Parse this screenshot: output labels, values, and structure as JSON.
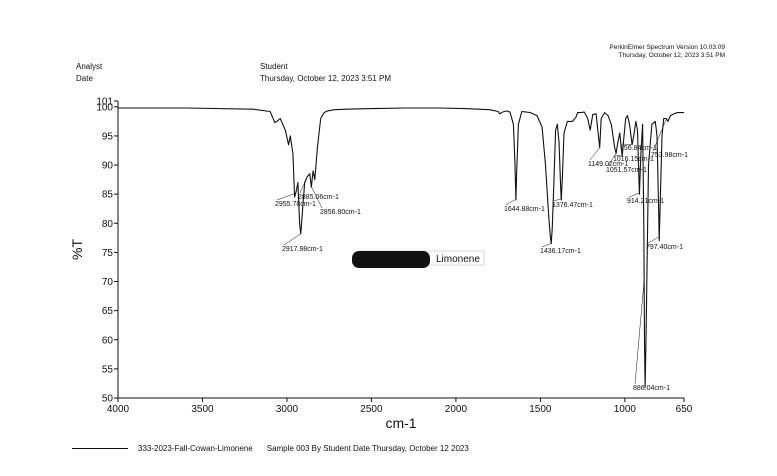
{
  "header": {
    "analyst_label": "Analyst",
    "date_label": "Date",
    "analyst_value": "Student",
    "date_value": "Thursday, October 12, 2023 3:51 PM",
    "software": "PerkinElmer Spectrum Version 10.03.09",
    "software_date": "Thursday, October 12, 2023 3:51 PM"
  },
  "legend": {
    "sample_name": "333-2023-Fall-Cowan-Limonene",
    "description": "Sample 003 By Student Date Thursday, October 12 2023"
  },
  "chart_data": {
    "type": "line",
    "title": "",
    "xlabel": "cm-1",
    "ylabel": "%T",
    "xlim": [
      4000,
      650
    ],
    "ylim": [
      50,
      101
    ],
    "x_reversed": true,
    "x_ticks": [
      4000,
      3500,
      3000,
      2500,
      2000,
      1500,
      1000,
      650
    ],
    "y_ticks": [
      50,
      55,
      60,
      65,
      70,
      75,
      80,
      85,
      90,
      95,
      100,
      101
    ],
    "grid": false,
    "annotation": "Limonene",
    "series": [
      {
        "name": "333-2023-Fall-Cowan-Limonene",
        "color": "#111111",
        "x": [
          4000,
          3600,
          3200,
          3100,
          3085,
          3072,
          3060,
          3040,
          3010,
          2990,
          2980,
          2965,
          2955,
          2945,
          2935,
          2925,
          2918,
          2910,
          2895,
          2880,
          2865,
          2856,
          2845,
          2835,
          2820,
          2800,
          2780,
          2760,
          2720,
          2650,
          2500,
          2300,
          2100,
          1950,
          1800,
          1750,
          1740,
          1725,
          1700,
          1680,
          1660,
          1650,
          1645,
          1640,
          1630,
          1610,
          1560,
          1520,
          1490,
          1470,
          1450,
          1442,
          1436,
          1430,
          1420,
          1410,
          1400,
          1390,
          1380,
          1376,
          1370,
          1360,
          1340,
          1310,
          1290,
          1280,
          1260,
          1240,
          1220,
          1205,
          1190,
          1170,
          1160,
          1149,
          1140,
          1120,
          1100,
          1080,
          1070,
          1060,
          1052,
          1044,
          1030,
          1016,
          1005,
          995,
          985,
          976,
          970,
          957,
          945,
          935,
          925,
          914,
          905,
          895,
          888,
          884,
          880,
          875,
          860,
          840,
          820,
          810,
          800,
          797,
          790,
          780,
          770,
          755,
          745,
          730,
          710,
          690,
          650
        ],
        "y": [
          99.8,
          99.8,
          99.6,
          99.2,
          98.2,
          97.3,
          97.5,
          98.0,
          96.0,
          93.5,
          95.0,
          92.0,
          84.5,
          85.5,
          87.0,
          80.0,
          78.2,
          81.5,
          87.0,
          88.0,
          88.5,
          86.2,
          89.0,
          87.5,
          93.0,
          98.0,
          99.0,
          99.3,
          99.5,
          99.6,
          99.7,
          99.8,
          99.8,
          99.7,
          99.5,
          99.2,
          98.8,
          99.1,
          99.3,
          99.1,
          97.0,
          90.0,
          84.0,
          89.0,
          97.0,
          99.2,
          99.0,
          98.5,
          96.5,
          90.0,
          81.0,
          78.0,
          76.5,
          79.0,
          87.0,
          96.0,
          97.0,
          94.0,
          86.0,
          84.0,
          88.0,
          95.5,
          97.5,
          97.5,
          98.2,
          99.0,
          99.0,
          99.1,
          98.0,
          96.0,
          98.7,
          98.8,
          96.0,
          93.0,
          98.0,
          99.0,
          98.5,
          97.0,
          95.0,
          93.0,
          92.0,
          93.5,
          95.5,
          91.5,
          95.0,
          98.0,
          98.5,
          97.5,
          96.5,
          93.5,
          95.5,
          97.5,
          96.0,
          85.0,
          92.0,
          97.0,
          80.0,
          60.0,
          51.8,
          60.0,
          90.0,
          97.0,
          97.5,
          95.0,
          82.0,
          77.0,
          84.0,
          95.0,
          98.0,
          98.0,
          97.5,
          98.5,
          98.8,
          99.0,
          99.0
        ]
      }
    ],
    "peaks": [
      {
        "x": 2955.78,
        "label": "2955.78cm-1"
      },
      {
        "x": 2917.98,
        "label": "2917.98cm-1"
      },
      {
        "x": 2885.06,
        "label": "2885.06cm-1"
      },
      {
        "x": 2856.8,
        "label": "2856.80cm-1"
      },
      {
        "x": 1644.88,
        "label": "1644.88cm-1"
      },
      {
        "x": 1436.17,
        "label": "1436.17cm-1"
      },
      {
        "x": 1376.47,
        "label": "1376.47cm-1"
      },
      {
        "x": 1149.02,
        "label": "1149.02cm-1"
      },
      {
        "x": 1051.57,
        "label": "1051.57cm-1"
      },
      {
        "x": 1016.15,
        "label": "1016.15cm-1"
      },
      {
        "x": 956.84,
        "label": "956.84cm-1"
      },
      {
        "x": 914.21,
        "label": "914.21cm-1"
      },
      {
        "x": 886.04,
        "label": "886.04cm-1"
      },
      {
        "x": 797.4,
        "label": "797.40cm-1"
      },
      {
        "x": 753.98,
        "label": "753.98cm-1"
      }
    ]
  }
}
